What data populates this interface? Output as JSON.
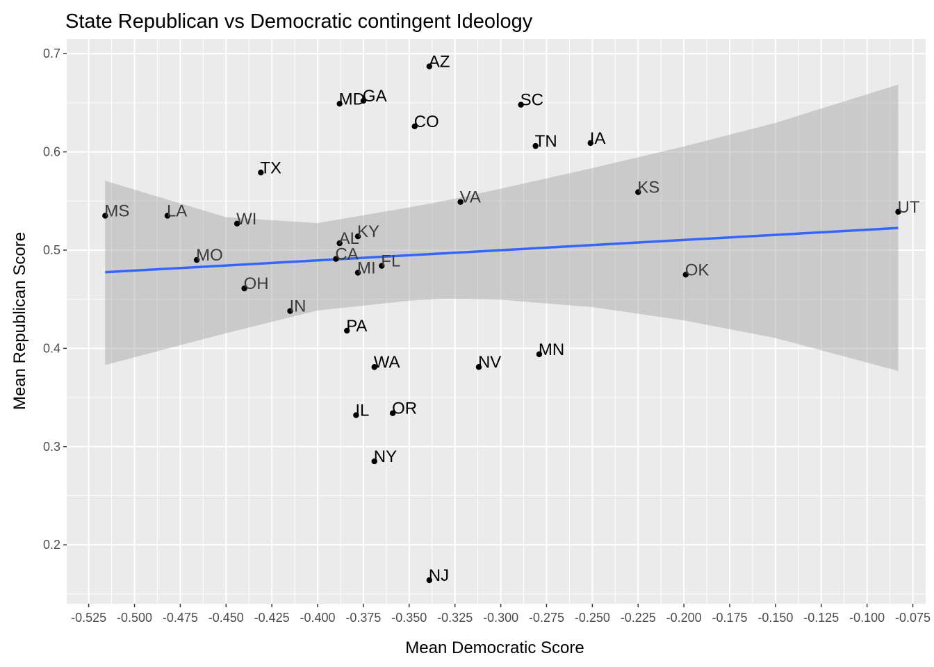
{
  "chart_data": {
    "type": "scatter",
    "title": "State Republican vs Democratic contingent Ideology",
    "xlabel": "Mean Democratic Score",
    "ylabel": "Mean Republican Score",
    "xlim": [
      -0.537,
      -0.068
    ],
    "ylim": [
      0.14,
      0.715
    ],
    "x_ticks": [
      -0.525,
      -0.5,
      -0.475,
      -0.45,
      -0.425,
      -0.4,
      -0.375,
      -0.35,
      -0.325,
      -0.3,
      -0.275,
      -0.25,
      -0.225,
      -0.2,
      -0.175,
      -0.15,
      -0.125,
      -0.1,
      -0.075
    ],
    "x_tick_labels": [
      "-0.525",
      "-0.500",
      "-0.475",
      "-0.450",
      "-0.425",
      "-0.400",
      "-0.375",
      "-0.350",
      "-0.325",
      "-0.300",
      "-0.275",
      "-0.250",
      "-0.225",
      "-0.200",
      "-0.175",
      "-0.150",
      "-0.125",
      "-0.100",
      "-0.075"
    ],
    "y_ticks": [
      0.2,
      0.3,
      0.4,
      0.5,
      0.6,
      0.7
    ],
    "y_tick_labels": [
      "0.2",
      "0.3",
      "0.4",
      "0.5",
      "0.6",
      "0.7"
    ],
    "grid": true,
    "points": [
      {
        "label": "AZ",
        "x": -0.339,
        "y": 0.687
      },
      {
        "label": "MD",
        "x": -0.388,
        "y": 0.649
      },
      {
        "label": "GA",
        "x": -0.375,
        "y": 0.652
      },
      {
        "label": "SC",
        "x": -0.289,
        "y": 0.648
      },
      {
        "label": "CO",
        "x": -0.347,
        "y": 0.626
      },
      {
        "label": "TN",
        "x": -0.281,
        "y": 0.606
      },
      {
        "label": "IA",
        "x": -0.251,
        "y": 0.609
      },
      {
        "label": "TX",
        "x": -0.431,
        "y": 0.579
      },
      {
        "label": "KS",
        "x": -0.225,
        "y": 0.559
      },
      {
        "label": "VA",
        "x": -0.322,
        "y": 0.549
      },
      {
        "label": "UT",
        "x": -0.083,
        "y": 0.539
      },
      {
        "label": "MS",
        "x": -0.516,
        "y": 0.535
      },
      {
        "label": "LA",
        "x": -0.482,
        "y": 0.535
      },
      {
        "label": "WI",
        "x": -0.444,
        "y": 0.527
      },
      {
        "label": "KY",
        "x": -0.378,
        "y": 0.514
      },
      {
        "label": "AL",
        "x": -0.388,
        "y": 0.507
      },
      {
        "label": "CA",
        "x": -0.39,
        "y": 0.491
      },
      {
        "label": "MO",
        "x": -0.466,
        "y": 0.49
      },
      {
        "label": "FL",
        "x": -0.365,
        "y": 0.484
      },
      {
        "label": "MI",
        "x": -0.378,
        "y": 0.477
      },
      {
        "label": "OK",
        "x": -0.199,
        "y": 0.475
      },
      {
        "label": "OH",
        "x": -0.44,
        "y": 0.461
      },
      {
        "label": "IN",
        "x": -0.415,
        "y": 0.438
      },
      {
        "label": "PA",
        "x": -0.384,
        "y": 0.418
      },
      {
        "label": "MN",
        "x": -0.279,
        "y": 0.394
      },
      {
        "label": "WA",
        "x": -0.369,
        "y": 0.381
      },
      {
        "label": "NV",
        "x": -0.312,
        "y": 0.381
      },
      {
        "label": "OR",
        "x": -0.359,
        "y": 0.334
      },
      {
        "label": "IL",
        "x": -0.379,
        "y": 0.332
      },
      {
        "label": "NY",
        "x": -0.369,
        "y": 0.285
      },
      {
        "label": "NJ",
        "x": -0.339,
        "y": 0.164
      }
    ],
    "trend_line": {
      "method": "lm",
      "x": [
        -0.516,
        -0.083
      ],
      "y": [
        0.4775,
        0.5225
      ],
      "band": {
        "x": [
          -0.516,
          -0.45,
          -0.4,
          -0.35,
          -0.33,
          -0.3,
          -0.25,
          -0.2,
          -0.15,
          -0.083
        ],
        "lower": [
          0.383,
          0.4155,
          0.4385,
          0.4485,
          0.4505,
          0.4495,
          0.442,
          0.4285,
          0.4105,
          0.377
        ],
        "upper": [
          0.5705,
          0.5335,
          0.5275,
          0.5435,
          0.5505,
          0.5625,
          0.5835,
          0.6055,
          0.6295,
          0.6685
        ]
      }
    },
    "colors": {
      "panel_background": "#ebebeb",
      "grid": "#ffffff",
      "points": "#000000",
      "trend_line": "#3366ff",
      "band": "#999999"
    }
  }
}
